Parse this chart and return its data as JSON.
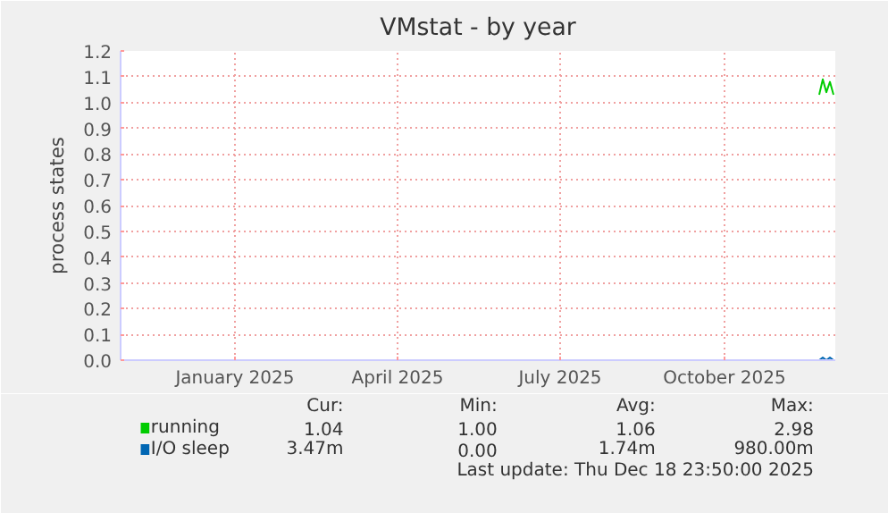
{
  "chart_data": {
    "type": "line",
    "title": "VMstat - by year",
    "ylabel": "process states",
    "x": [
      "2025-12-09",
      "2025-12-11",
      "2025-12-13",
      "2025-12-15",
      "2025-12-17"
    ],
    "series": [
      {
        "name": "running",
        "color": "#00cc00",
        "values": [
          1.03,
          1.09,
          1.04,
          1.08,
          1.03
        ]
      },
      {
        "name": "I/O sleep",
        "color": "#0066b3",
        "values": [
          0.0,
          0.01,
          0.0,
          0.01,
          0.0
        ]
      }
    ],
    "xlim": [
      "2024-11-13",
      "2025-12-18"
    ],
    "xticks": [
      {
        "value": "2025-01-16",
        "label": "January 2025"
      },
      {
        "value": "2025-04-17",
        "label": "April 2025"
      },
      {
        "value": "2025-07-17",
        "label": "July 2025"
      },
      {
        "value": "2025-10-17",
        "label": "October 2025"
      }
    ],
    "ylim": [
      0,
      1.2
    ],
    "yticks": [
      {
        "value": 0,
        "label": "0.0"
      },
      {
        "value": 0.1,
        "label": "0.1"
      },
      {
        "value": 0.2,
        "label": "0.2"
      },
      {
        "value": 0.3,
        "label": "0.3"
      },
      {
        "value": 0.4,
        "label": "0.4"
      },
      {
        "value": 0.5,
        "label": "0.5"
      },
      {
        "value": 0.6,
        "label": "0.6"
      },
      {
        "value": 0.7,
        "label": "0.7"
      },
      {
        "value": 0.8,
        "label": "0.8"
      },
      {
        "value": 0.9,
        "label": "0.9"
      },
      {
        "value": 1.0,
        "label": "1.0"
      },
      {
        "value": 1.1,
        "label": "1.1"
      },
      {
        "value": 1.2,
        "label": "1.2"
      }
    ],
    "grid": true,
    "legend": "bottom left",
    "marker": "none",
    "line_style": "solid",
    "annotations": [
      "Cur:",
      "Min:",
      "Avg:",
      "Max:",
      "1.04",
      "1.00",
      "1.06",
      "2.98",
      "3.47m",
      "0.00",
      "1.74m",
      "980.00m",
      "Last update: Thu Dec 18 23:50:00 2025"
    ]
  }
}
